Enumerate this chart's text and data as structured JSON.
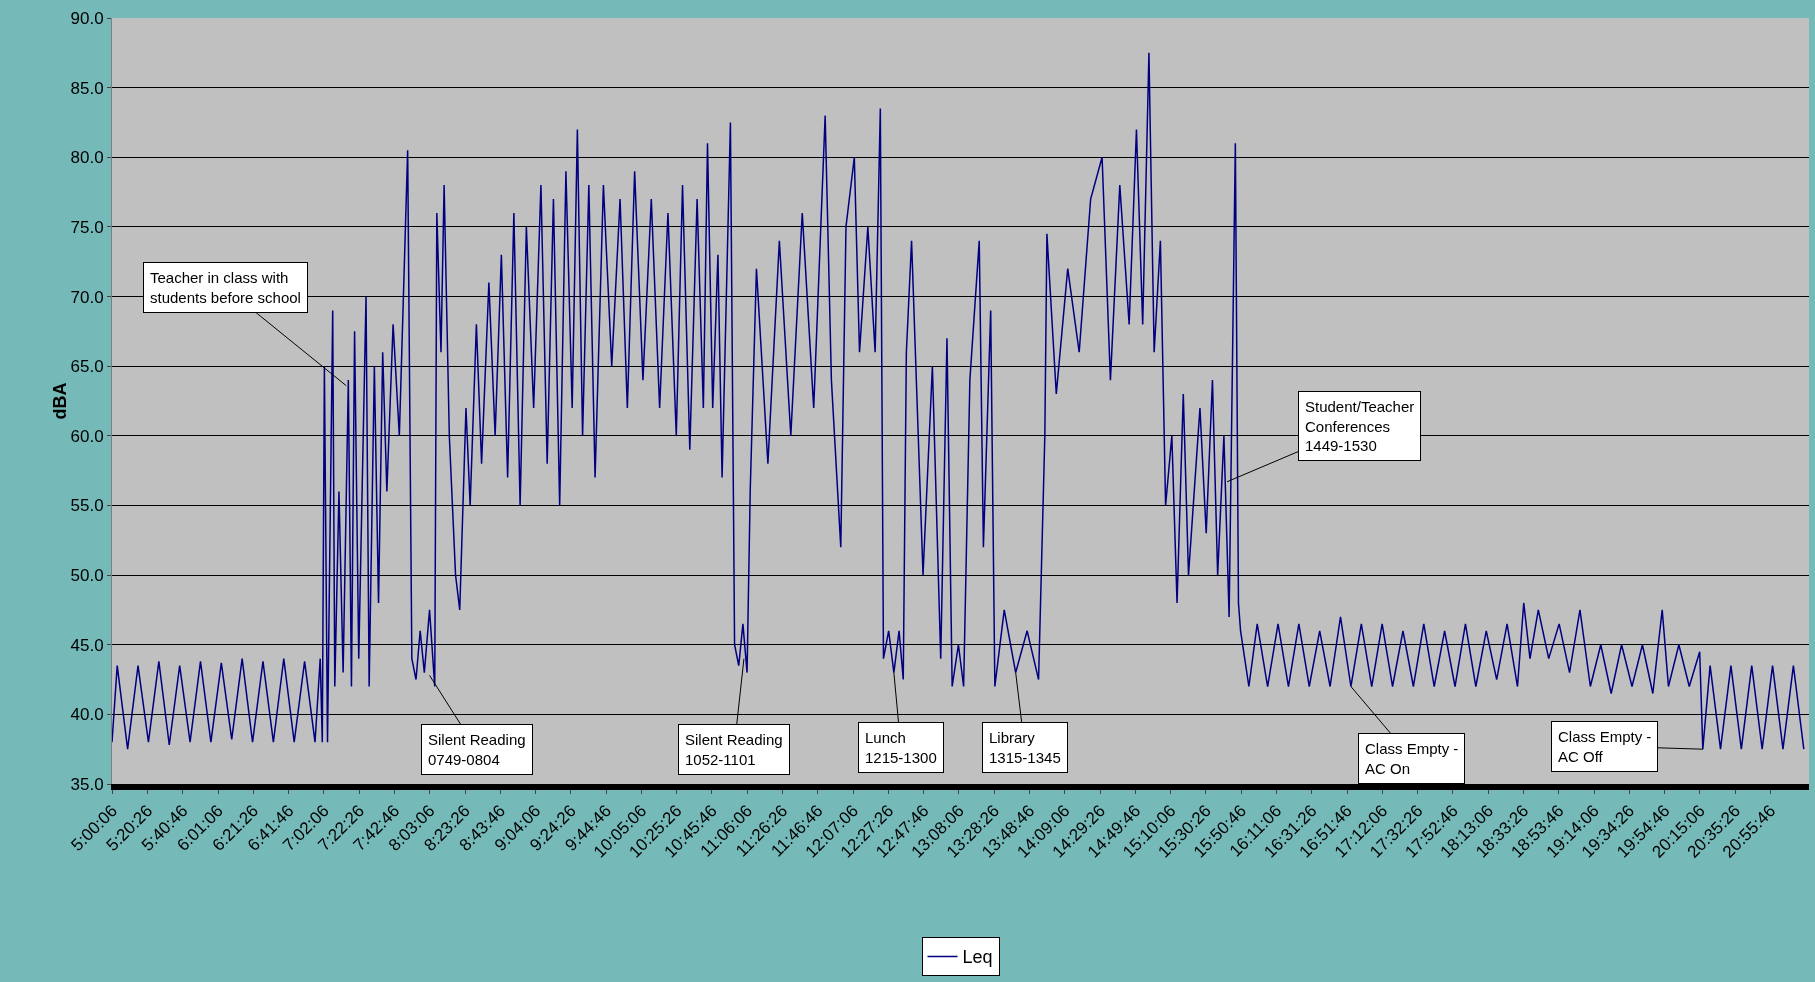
{
  "chart_data": {
    "type": "line",
    "ylabel": "dBA",
    "legend": "bottom",
    "grid": "y",
    "marker": "none",
    "line_style": "solid",
    "xlim": [
      5.0,
      21.3
    ],
    "ylim": [
      35,
      90
    ],
    "yticks": [
      {
        "value": 35,
        "label": "35.0"
      },
      {
        "value": 40,
        "label": "40.0"
      },
      {
        "value": 45,
        "label": "45.0"
      },
      {
        "value": 50,
        "label": "50.0"
      },
      {
        "value": 55,
        "label": "55.0"
      },
      {
        "value": 60,
        "label": "60.0"
      },
      {
        "value": 65,
        "label": "65.0"
      },
      {
        "value": 70,
        "label": "70.0"
      },
      {
        "value": 75,
        "label": "75.0"
      },
      {
        "value": 80,
        "label": "80.0"
      },
      {
        "value": 85,
        "label": "85.0"
      },
      {
        "value": 90,
        "label": "90.0"
      }
    ],
    "xticks": [
      {
        "value": 5.0017,
        "label": "5:00:06"
      },
      {
        "value": 5.3406,
        "label": "5:20:26"
      },
      {
        "value": 5.6794,
        "label": "5:40:46"
      },
      {
        "value": 6.0183,
        "label": "6:01:06"
      },
      {
        "value": 6.3572,
        "label": "6:21:26"
      },
      {
        "value": 6.6961,
        "label": "6:41:46"
      },
      {
        "value": 7.035,
        "label": "7:02:06"
      },
      {
        "value": 7.3739,
        "label": "7:22:26"
      },
      {
        "value": 7.7128,
        "label": "7:42:46"
      },
      {
        "value": 8.0517,
        "label": "8:03:06"
      },
      {
        "value": 8.3906,
        "label": "8:23:26"
      },
      {
        "value": 8.7294,
        "label": "8:43:46"
      },
      {
        "value": 9.0683,
        "label": "9:04:06"
      },
      {
        "value": 9.4072,
        "label": "9:24:26"
      },
      {
        "value": 9.7461,
        "label": "9:44:46"
      },
      {
        "value": 10.085,
        "label": "10:05:06"
      },
      {
        "value": 10.4239,
        "label": "10:25:26"
      },
      {
        "value": 10.7628,
        "label": "10:45:46"
      },
      {
        "value": 11.1017,
        "label": "11:06:06"
      },
      {
        "value": 11.4406,
        "label": "11:26:26"
      },
      {
        "value": 11.7794,
        "label": "11:46:46"
      },
      {
        "value": 12.1183,
        "label": "12:07:06"
      },
      {
        "value": 12.4572,
        "label": "12:27:26"
      },
      {
        "value": 12.7961,
        "label": "12:47:46"
      },
      {
        "value": 13.135,
        "label": "13:08:06"
      },
      {
        "value": 13.4739,
        "label": "13:28:26"
      },
      {
        "value": 13.8128,
        "label": "13:48:46"
      },
      {
        "value": 14.1517,
        "label": "14:09:06"
      },
      {
        "value": 14.4906,
        "label": "14:29:26"
      },
      {
        "value": 14.8294,
        "label": "14:49:46"
      },
      {
        "value": 15.1683,
        "label": "15:10:06"
      },
      {
        "value": 15.5072,
        "label": "15:30:26"
      },
      {
        "value": 15.8461,
        "label": "15:50:46"
      },
      {
        "value": 16.185,
        "label": "16:11:06"
      },
      {
        "value": 16.5239,
        "label": "16:31:26"
      },
      {
        "value": 16.8628,
        "label": "16:51:46"
      },
      {
        "value": 17.2017,
        "label": "17:12:06"
      },
      {
        "value": 17.5406,
        "label": "17:32:26"
      },
      {
        "value": 17.8794,
        "label": "17:52:46"
      },
      {
        "value": 18.2183,
        "label": "18:13:06"
      },
      {
        "value": 18.5572,
        "label": "18:33:26"
      },
      {
        "value": 18.8961,
        "label": "18:53:46"
      },
      {
        "value": 19.235,
        "label": "19:14:06"
      },
      {
        "value": 19.5739,
        "label": "19:34:26"
      },
      {
        "value": 19.9128,
        "label": "19:54:46"
      },
      {
        "value": 20.2517,
        "label": "20:15:06"
      },
      {
        "value": 20.5906,
        "label": "20:35:26"
      },
      {
        "value": 20.9294,
        "label": "20:55:46"
      }
    ],
    "series": [
      {
        "name": "Leq",
        "color": "#000080",
        "x": [
          5.0,
          5.05,
          5.15,
          5.25,
          5.35,
          5.45,
          5.55,
          5.65,
          5.75,
          5.85,
          5.95,
          6.05,
          6.15,
          6.25,
          6.35,
          6.45,
          6.55,
          6.65,
          6.75,
          6.85,
          6.95,
          7.0,
          7.02,
          7.04,
          7.07,
          7.12,
          7.14,
          7.18,
          7.22,
          7.27,
          7.3,
          7.33,
          7.37,
          7.44,
          7.47,
          7.52,
          7.56,
          7.6,
          7.64,
          7.7,
          7.76,
          7.84,
          7.88,
          7.92,
          7.96,
          8.0,
          8.05,
          8.1,
          8.12,
          8.16,
          8.19,
          8.24,
          8.3,
          8.34,
          8.4,
          8.44,
          8.5,
          8.55,
          8.62,
          8.68,
          8.74,
          8.8,
          8.86,
          8.92,
          8.98,
          9.05,
          9.12,
          9.18,
          9.24,
          9.3,
          9.36,
          9.42,
          9.47,
          9.52,
          9.58,
          9.64,
          9.72,
          9.8,
          9.88,
          9.95,
          10.02,
          10.1,
          10.18,
          10.26,
          10.34,
          10.42,
          10.48,
          10.55,
          10.62,
          10.68,
          10.72,
          10.77,
          10.82,
          10.86,
          10.94,
          10.98,
          11.02,
          11.06,
          11.1,
          11.13,
          11.19,
          11.3,
          11.41,
          11.52,
          11.63,
          11.74,
          11.85,
          11.91,
          12.0,
          12.05,
          12.13,
          12.18,
          12.26,
          12.33,
          12.38,
          12.41,
          12.46,
          12.51,
          12.56,
          12.6,
          12.63,
          12.68,
          12.79,
          12.88,
          12.96,
          13.02,
          13.07,
          13.13,
          13.18,
          13.24,
          13.33,
          13.37,
          13.44,
          13.48,
          13.57,
          13.68,
          13.79,
          13.9,
          13.96,
          13.98,
          14.07,
          14.18,
          14.29,
          14.4,
          14.51,
          14.59,
          14.68,
          14.77,
          14.84,
          14.9,
          14.96,
          15.01,
          15.07,
          15.12,
          15.18,
          15.23,
          15.29,
          15.34,
          15.45,
          15.51,
          15.57,
          15.62,
          15.68,
          15.73,
          15.79,
          15.82,
          15.84,
          15.92,
          16.0,
          16.1,
          16.2,
          16.3,
          16.4,
          16.5,
          16.6,
          16.7,
          16.8,
          16.9,
          17.0,
          17.1,
          17.2,
          17.3,
          17.4,
          17.5,
          17.6,
          17.7,
          17.8,
          17.9,
          18.0,
          18.1,
          18.2,
          18.3,
          18.4,
          18.5,
          18.56,
          18.62,
          18.7,
          18.8,
          18.9,
          19.0,
          19.1,
          19.2,
          19.3,
          19.4,
          19.5,
          19.6,
          19.7,
          19.8,
          19.89,
          19.95,
          20.05,
          20.15,
          20.25,
          20.28,
          20.35,
          20.45,
          20.55,
          20.65,
          20.75,
          20.85,
          20.95,
          21.05,
          21.15,
          21.25
        ],
        "values": [
          38,
          43.5,
          37.5,
          43.5,
          38,
          43.8,
          37.8,
          43.5,
          38,
          43.8,
          38,
          43.7,
          38.2,
          44,
          38,
          43.8,
          38,
          44,
          38,
          43.8,
          38,
          44,
          38,
          65,
          38,
          69,
          42,
          56,
          43,
          64,
          42,
          67.5,
          44,
          70,
          42,
          65,
          48,
          66,
          56,
          68,
          60,
          80.5,
          44,
          42.5,
          46,
          43,
          47.5,
          42,
          76,
          66,
          78,
          60,
          50,
          47.5,
          62,
          55,
          68,
          58,
          71,
          60,
          73,
          57,
          76,
          55,
          75,
          62,
          78,
          58,
          77,
          55,
          79,
          62,
          82,
          60,
          78,
          57,
          78,
          65,
          77,
          62,
          79,
          64,
          77,
          62,
          76,
          60,
          78,
          59,
          77,
          62,
          81,
          62,
          73,
          57,
          82.5,
          45,
          43.5,
          46.5,
          43,
          56,
          72,
          58,
          74,
          60,
          76,
          62,
          83,
          64,
          52,
          75,
          80,
          66,
          75,
          66,
          83.5,
          44,
          46,
          43,
          46,
          42.5,
          66,
          74,
          50,
          65,
          44,
          67,
          42,
          45,
          42,
          64,
          74,
          52,
          69,
          42,
          47.5,
          43,
          46,
          42.5,
          60,
          74.5,
          63,
          72,
          66,
          77,
          80,
          64,
          78,
          68,
          82,
          68,
          87.5,
          66,
          74,
          55,
          60,
          48,
          63,
          50,
          62,
          53,
          64,
          50,
          60,
          47,
          81,
          48,
          46,
          42,
          46.5,
          42,
          46.5,
          42,
          46.5,
          42,
          46,
          42,
          47,
          42,
          46.5,
          42,
          46.5,
          42,
          46,
          42,
          46.5,
          42,
          46,
          42,
          46.5,
          42,
          46,
          42.5,
          46.5,
          42,
          48,
          44,
          47.5,
          44,
          46.5,
          43,
          47.5,
          42,
          45,
          41.5,
          45,
          42,
          45,
          41.5,
          47.5,
          42,
          45,
          42,
          44.5,
          37.5,
          43.5,
          37.5,
          43.5,
          37.5,
          43.5,
          37.5,
          43.5,
          37.5,
          43.5,
          37.5
        ]
      }
    ],
    "annotations": [
      {
        "text": "Teacher in class with\nstudents before school",
        "x": 7.25,
        "y": 63.6
      },
      {
        "text": "Silent Reading\n0749-0804",
        "x": 8.05,
        "y": 42.8
      },
      {
        "text": "Silent Reading\n1052-1101",
        "x": 11.07,
        "y": 44
      },
      {
        "text": "Lunch\n1215-1300",
        "x": 12.51,
        "y": 43
      },
      {
        "text": "Library\n1315-1345",
        "x": 13.68,
        "y": 43
      },
      {
        "text": "Class Empty -\nAC On",
        "x": 16.9,
        "y": 42
      },
      {
        "text": "Class Empty -\nAC Off",
        "x": 20.28,
        "y": 37.5
      },
      {
        "text": "Student/Teacher\nConferences\n1449-1530",
        "x": 15.71,
        "y": 56.7
      }
    ]
  }
}
